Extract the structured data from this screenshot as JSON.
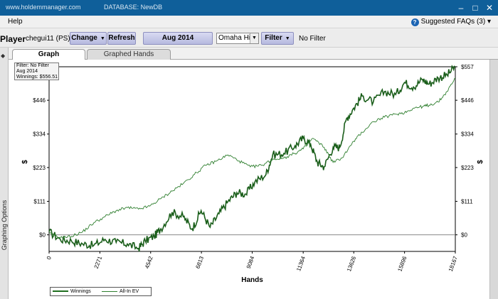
{
  "titlebar": {
    "url": "www.holdemmanager.com",
    "database": "DATABASE: NewDB",
    "minimize_glyph": "–",
    "maximize_glyph": "□",
    "close_glyph": "✕"
  },
  "menubar": {
    "help": "Help",
    "faq": "Suggested FAQs (3)",
    "faq_icon": "?",
    "faq_arrow": "▾"
  },
  "toolbar": {
    "player_label": "Player",
    "player_name": "chegui11 (PS)",
    "change_label": "Change",
    "refresh_label": "Refresh",
    "date_label": "Aug 2014",
    "game_value": "Omaha Hi",
    "filter_label": "Filter",
    "filter_status": "No Filter",
    "dropdown_arrow": "▼"
  },
  "side_panel": {
    "label": "Graphing Options",
    "expand_glyph": "◆"
  },
  "tabs": [
    {
      "label": "Graph",
      "active": true
    },
    {
      "label": "Graphed Hands",
      "active": false
    }
  ],
  "filter_box": {
    "line1": "Filter: No Filter",
    "line2": "Aug 2014",
    "line3": "Winnings: $556.51"
  },
  "legend": [
    {
      "label": "Winnings",
      "color": "#1f6e1f"
    },
    {
      "label": "All-In EV",
      "color": "#2f7f2f"
    }
  ],
  "chart_data": {
    "type": "line",
    "xlabel": "Hands",
    "ylabel": "$",
    "x_ticks": [
      0,
      2271,
      4542,
      6813,
      9084,
      11364,
      13626,
      15896,
      18167
    ],
    "y_ticks": [
      "$0",
      "$111",
      "$223",
      "$334",
      "$446",
      "$557"
    ],
    "y_tick_values": [
      0,
      111,
      223,
      334,
      446,
      557
    ],
    "xlim": [
      0,
      18167
    ],
    "ylim": [
      -55,
      557
    ],
    "series": [
      {
        "name": "Winnings",
        "color": "#1a5e1a",
        "x": [
          0,
          500,
          1000,
          1500,
          2000,
          2500,
          3000,
          3500,
          4000,
          4300,
          4700,
          5000,
          5500,
          6000,
          6400,
          6800,
          7200,
          7600,
          8000,
          8400,
          8800,
          9200,
          9700,
          10000,
          10500,
          11000,
          11364,
          11700,
          12000,
          12300,
          12700,
          13000,
          13300,
          13626,
          14000,
          14500,
          15000,
          15500,
          15896,
          16300,
          16700,
          17000,
          17400,
          17800,
          18167
        ],
        "y": [
          10,
          -15,
          -20,
          -30,
          -35,
          -15,
          -25,
          -30,
          -45,
          -20,
          -5,
          20,
          75,
          60,
          20,
          80,
          25,
          70,
          110,
          140,
          135,
          175,
          200,
          265,
          270,
          295,
          320,
          300,
          240,
          225,
          290,
          290,
          385,
          420,
          460,
          440,
          475,
          465,
          505,
          490,
          515,
          500,
          520,
          530,
          556.51
        ]
      },
      {
        "name": "All-In EV",
        "color": "#2f7f2f",
        "x": [
          0,
          500,
          1000,
          1500,
          2000,
          2500,
          3000,
          3500,
          4000,
          4500,
          5000,
          5500,
          6000,
          6500,
          7000,
          7500,
          8000,
          8500,
          9000,
          9500,
          10000,
          10500,
          11000,
          11364,
          11800,
          12300,
          12700,
          13100,
          13626,
          14000,
          14500,
          15000,
          15500,
          15896,
          16300,
          16700,
          17000,
          17400,
          17800,
          18167
        ],
        "y": [
          5,
          -10,
          -5,
          10,
          40,
          60,
          80,
          90,
          85,
          95,
          120,
          145,
          170,
          200,
          230,
          245,
          265,
          245,
          225,
          230,
          250,
          255,
          270,
          285,
          320,
          290,
          240,
          255,
          310,
          340,
          375,
          390,
          400,
          405,
          420,
          425,
          430,
          440,
          475,
          520
        ]
      }
    ]
  },
  "colors": {
    "titlebar": "#0f5f9a",
    "grid_axis": "#000000",
    "zero_line": "#888888",
    "winnings": "#1a5e1a",
    "all_in_ev": "#2f7f2f"
  }
}
